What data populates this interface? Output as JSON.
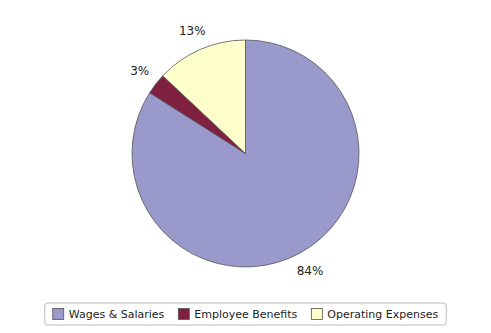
{
  "chart_data": {
    "type": "pie",
    "categories": [
      "Wages & Salaries",
      "Employee Benefits",
      "Operating Expenses"
    ],
    "values": [
      84,
      3,
      13
    ],
    "value_labels": [
      "84%",
      "3%",
      "13%"
    ],
    "colors": [
      "#9999cc",
      "#7f2040",
      "#ffffcc"
    ],
    "data_labels": true,
    "legend": "bottom"
  }
}
